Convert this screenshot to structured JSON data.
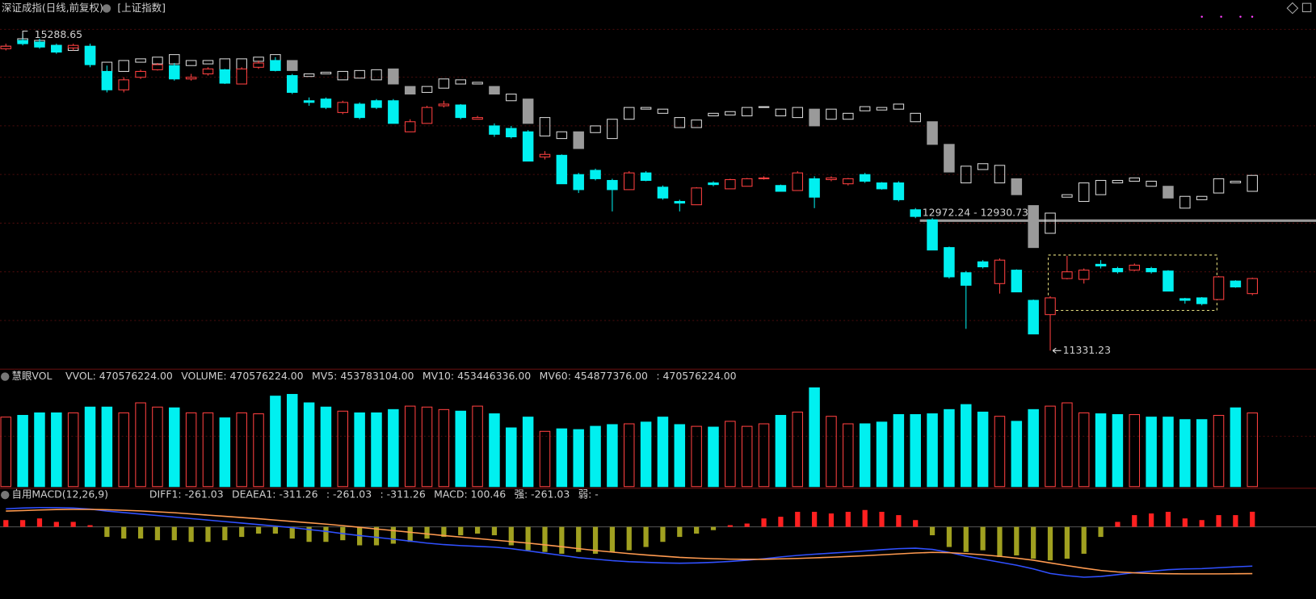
{
  "chart_data": [
    {
      "type": "candlestick",
      "title": "深证成指(日线,前复权)",
      "ylim": [
        11100,
        15520
      ],
      "annotation": "12972.24 - 12930.73",
      "candles": {
        "up_color": "#ff4040",
        "down_color": "#00f0f0",
        "open": [
          15100,
          15204,
          15184,
          15142,
          15110,
          15131,
          14817,
          14587,
          14744,
          14838,
          14890,
          14723,
          14786,
          14838,
          14660,
          14869,
          14953,
          14765,
          14451,
          14472,
          14304,
          14409,
          14451,
          14451,
          14063,
          14168,
          14388,
          14398,
          14220,
          14137,
          14105,
          14063,
          13749,
          13770,
          13529,
          13582,
          13456,
          13341,
          13550,
          13372,
          13194,
          13152,
          13425,
          13351,
          13383,
          13477,
          13393,
          13330,
          13477,
          13466,
          13414,
          13529,
          13425,
          13425,
          13090,
          12964,
          12618,
          12304,
          12440,
          12168,
          12336,
          11959,
          11781,
          12231,
          12221,
          12409,
          12357,
          12336,
          12357,
          12325,
          11980,
          11990,
          11969,
          12200,
          12043
        ],
        "high": [
          15163,
          15288.65,
          15225,
          15163,
          15163,
          15163,
          14890,
          14744,
          14838,
          14922,
          14922,
          14786,
          14869,
          14848,
          14869,
          14953,
          14995,
          14786,
          14492,
          14492,
          14451,
          14430,
          14472,
          14472,
          14220,
          14388,
          14451,
          14409,
          14262,
          14168,
          14137,
          14084,
          13822,
          13781,
          13550,
          13603,
          13477,
          13571,
          13571,
          13393,
          13215,
          13372,
          13446,
          13477,
          13487,
          13508,
          13404,
          13571,
          13508,
          13508,
          13487,
          13550,
          13435,
          13446,
          13111,
          12985,
          12630,
          12325,
          12461,
          12482,
          12346,
          11969,
          12010,
          12514,
          12357,
          12461,
          12377,
          12419,
          12377,
          12336,
          11990,
          12000,
          12263,
          12210,
          12242
        ],
        "low": [
          15079,
          15142,
          15100,
          15037,
          15079,
          14869,
          14555,
          14555,
          14723,
          14828,
          14702,
          14702,
          14765,
          14660,
          14660,
          14848,
          14817,
          14534,
          14388,
          14346,
          14283,
          14220,
          14346,
          14168,
          14063,
          14168,
          14367,
          14220,
          14220,
          14000,
          13979,
          13697,
          13718,
          13414,
          13299,
          13456,
          13069,
          13341,
          13446,
          13215,
          13069,
          13152,
          13383,
          13351,
          13383,
          13466,
          13320,
          13330,
          13110,
          13446,
          13393,
          13425,
          13341,
          13194,
          12985,
          12587,
          12231,
          11603,
          12357,
          12043,
          12064,
          11539,
          11331.23,
          12221,
          12168,
          12357,
          12294,
          12325,
          12294,
          12074,
          11917,
          11896,
          11969,
          12116,
          12022
        ],
        "close": [
          15131,
          15163,
          15121,
          15058,
          15142,
          14901,
          14587,
          14712,
          14817,
          14901,
          14723,
          14744,
          14848,
          14670,
          14848,
          14922,
          14828,
          14555,
          14430,
          14367,
          14430,
          14241,
          14367,
          14168,
          14189,
          14367,
          14409,
          14241,
          14241,
          14032,
          14000,
          13697,
          13781,
          13414,
          13341,
          13477,
          13341,
          13550,
          13456,
          13236,
          13173,
          13362,
          13404,
          13466,
          13477,
          13487,
          13320,
          13550,
          13247,
          13487,
          13477,
          13446,
          13351,
          13215,
          13006,
          12587,
          12252,
          12147,
          12377,
          12461,
          12064,
          11539,
          11990,
          12315,
          12336,
          12388,
          12315,
          12398,
          12315,
          12074,
          11959,
          11917,
          12252,
          12126,
          12231
        ]
      },
      "overlay": {
        "name": "[上证指数]",
        "up_color": "#d8d8d8",
        "down_color": "#9a9a9a",
        "open": [
          15110,
          15184,
          15163,
          15100,
          15079,
          15131,
          14807,
          14817,
          14932,
          14911,
          14911,
          14890,
          14911,
          14828,
          14807,
          14943,
          14953,
          14953,
          14754,
          14786,
          14712,
          14733,
          14712,
          14848,
          14629,
          14555,
          14608,
          14660,
          14660,
          14629,
          14451,
          14472,
          14011,
          13979,
          14063,
          14053,
          13979,
          14220,
          14346,
          14294,
          14116,
          14116,
          14262,
          14273,
          14262,
          14367,
          14262,
          14241,
          14346,
          14220,
          14220,
          14325,
          14335,
          14346,
          14189,
          14189,
          13906,
          13425,
          13592,
          13425,
          13477,
          13142,
          12796,
          13247,
          13194,
          13278,
          13425,
          13446,
          13383,
          13383,
          13110,
          13215,
          13299,
          13425,
          13320
        ],
        "close": [
          15131,
          15225,
          15204,
          15142,
          15131,
          14922,
          14932,
          14953,
          14974,
          14995,
          15027,
          14953,
          14953,
          14974,
          14974,
          14995,
          15027,
          14828,
          14786,
          14807,
          14817,
          14828,
          14838,
          14660,
          14534,
          14629,
          14723,
          14712,
          14681,
          14534,
          14534,
          14168,
          14241,
          14063,
          13854,
          14137,
          14220,
          14367,
          14367,
          14346,
          14241,
          14210,
          14294,
          14315,
          14367,
          14377,
          14346,
          14367,
          14137,
          14346,
          14294,
          14377,
          14367,
          14409,
          14294,
          13906,
          13561,
          13634,
          13665,
          13644,
          13278,
          12618,
          13048,
          13278,
          13425,
          13456,
          13456,
          13487,
          13446,
          13236,
          13257,
          13257,
          13477,
          13446,
          13519
        ]
      }
    },
    {
      "type": "bar",
      "title": "慧眼VOL",
      "ylim": [
        0,
        670000000
      ],
      "legend": [
        {
          "text": "VVOL: 470576224.00",
          "color": "#e0e0e0"
        },
        {
          "text": "VOLUME: 470576224.00",
          "color": "#ff40ff"
        },
        {
          "text": "MV5: 453783104.00",
          "color": "#40ff40"
        },
        {
          "text": "MV10: 453446336.00",
          "color": "#e0e0e0"
        },
        {
          "text": "MV60: 454877376.00",
          "color": "#3050ff"
        },
        {
          "text": ": 470576224.00",
          "color": "#ffff40"
        }
      ],
      "values": [
        444000000,
        455000000,
        471000000,
        471000000,
        471000000,
        508000000,
        508000000,
        471000000,
        535000000,
        508000000,
        503000000,
        471000000,
        471000000,
        439000000,
        471000000,
        465000000,
        578000000,
        589000000,
        535000000,
        508000000,
        482000000,
        471000000,
        471000000,
        492000000,
        514000000,
        508000000,
        492000000,
        482000000,
        514000000,
        465000000,
        375000000,
        444000000,
        353000000,
        369000000,
        364000000,
        385000000,
        396000000,
        401000000,
        412000000,
        444000000,
        396000000,
        385000000,
        380000000,
        417000000,
        385000000,
        401000000,
        455000000,
        476000000,
        631000000,
        449000000,
        401000000,
        401000000,
        412000000,
        460000000,
        460000000,
        465000000,
        492000000,
        524000000,
        476000000,
        449000000,
        417000000,
        492000000,
        514000000,
        535000000,
        471000000,
        465000000,
        460000000,
        460000000,
        444000000,
        444000000,
        428000000,
        428000000,
        455000000,
        503000000,
        470576224
      ]
    },
    {
      "type": "macd",
      "title": "自用MACD(12,26,9)",
      "ylim": [
        -480,
        212
      ],
      "up_color": "#ff2020",
      "down_color": "#a0a020",
      "legend": [
        {
          "text": "DIFF1: -261.03",
          "color": "#e0e0e0"
        },
        {
          "text": "DEAEA1: -311.26",
          "color": "#ffff60"
        },
        {
          "text": ": -261.03",
          "color": "#3050ff"
        },
        {
          "text": ": -311.26",
          "color": "#40ff40"
        },
        {
          "text": "MACD: 100.46",
          "color": "#ff40ff"
        },
        {
          "text": "强: -261.03",
          "color": "#ff3030"
        },
        {
          "text": "弱: -",
          "color": "#ff3030"
        }
      ],
      "values": [
        45,
        45,
        56,
        33,
        33,
        11,
        -67,
        -78,
        -78,
        -89,
        -89,
        -100,
        -100,
        -89,
        -67,
        -45,
        -45,
        -78,
        -100,
        -100,
        -89,
        -123,
        -123,
        -112,
        -100,
        -78,
        -67,
        -56,
        -45,
        -56,
        -123,
        -156,
        -167,
        -179,
        -167,
        -179,
        -167,
        -156,
        -134,
        -100,
        -67,
        -45,
        -22,
        11,
        22,
        56,
        67,
        100,
        100,
        89,
        100,
        112,
        100,
        78,
        45,
        -56,
        -134,
        -167,
        -156,
        -201,
        -190,
        -212,
        -223,
        -212,
        -179,
        -67,
        33,
        78,
        89,
        100,
        56,
        45,
        78,
        78,
        100.46
      ],
      "series": [
        {
          "color": "#3050ff",
          "values": [
            120,
            125,
            128,
            128,
            125,
            118,
            105,
            95,
            85,
            75,
            65,
            55,
            45,
            35,
            25,
            15,
            5,
            -5,
            -18,
            -30,
            -45,
            -58,
            -70,
            -82,
            -95,
            -108,
            -118,
            -125,
            -130,
            -135,
            -145,
            -160,
            -175,
            -190,
            -205,
            -215,
            -225,
            -232,
            -236,
            -240,
            -242,
            -240,
            -236,
            -230,
            -222,
            -212,
            -200,
            -190,
            -182,
            -175,
            -168,
            -160,
            -152,
            -145,
            -142,
            -150,
            -170,
            -195,
            -215,
            -235,
            -255,
            -280,
            -310,
            -325,
            -335,
            -330,
            -318,
            -305,
            -295,
            -285,
            -280,
            -278,
            -272,
            -266,
            -261.03
          ]
        },
        {
          "color": "#ff9a50",
          "values": [
            105,
            108,
            112,
            115,
            116,
            116,
            114,
            110,
            106,
            100,
            94,
            86,
            78,
            70,
            62,
            54,
            45,
            36,
            27,
            18,
            8,
            -3,
            -14,
            -25,
            -36,
            -47,
            -58,
            -68,
            -78,
            -88,
            -98,
            -108,
            -120,
            -132,
            -145,
            -157,
            -168,
            -178,
            -187,
            -195,
            -203,
            -208,
            -212,
            -215,
            -216,
            -216,
            -213,
            -210,
            -206,
            -202,
            -197,
            -192,
            -186,
            -180,
            -174,
            -170,
            -172,
            -178,
            -186,
            -196,
            -208,
            -222,
            -240,
            -258,
            -275,
            -290,
            -300,
            -306,
            -310,
            -312,
            -313,
            -313,
            -313,
            -312,
            -311.26
          ]
        }
      ]
    }
  ]
}
